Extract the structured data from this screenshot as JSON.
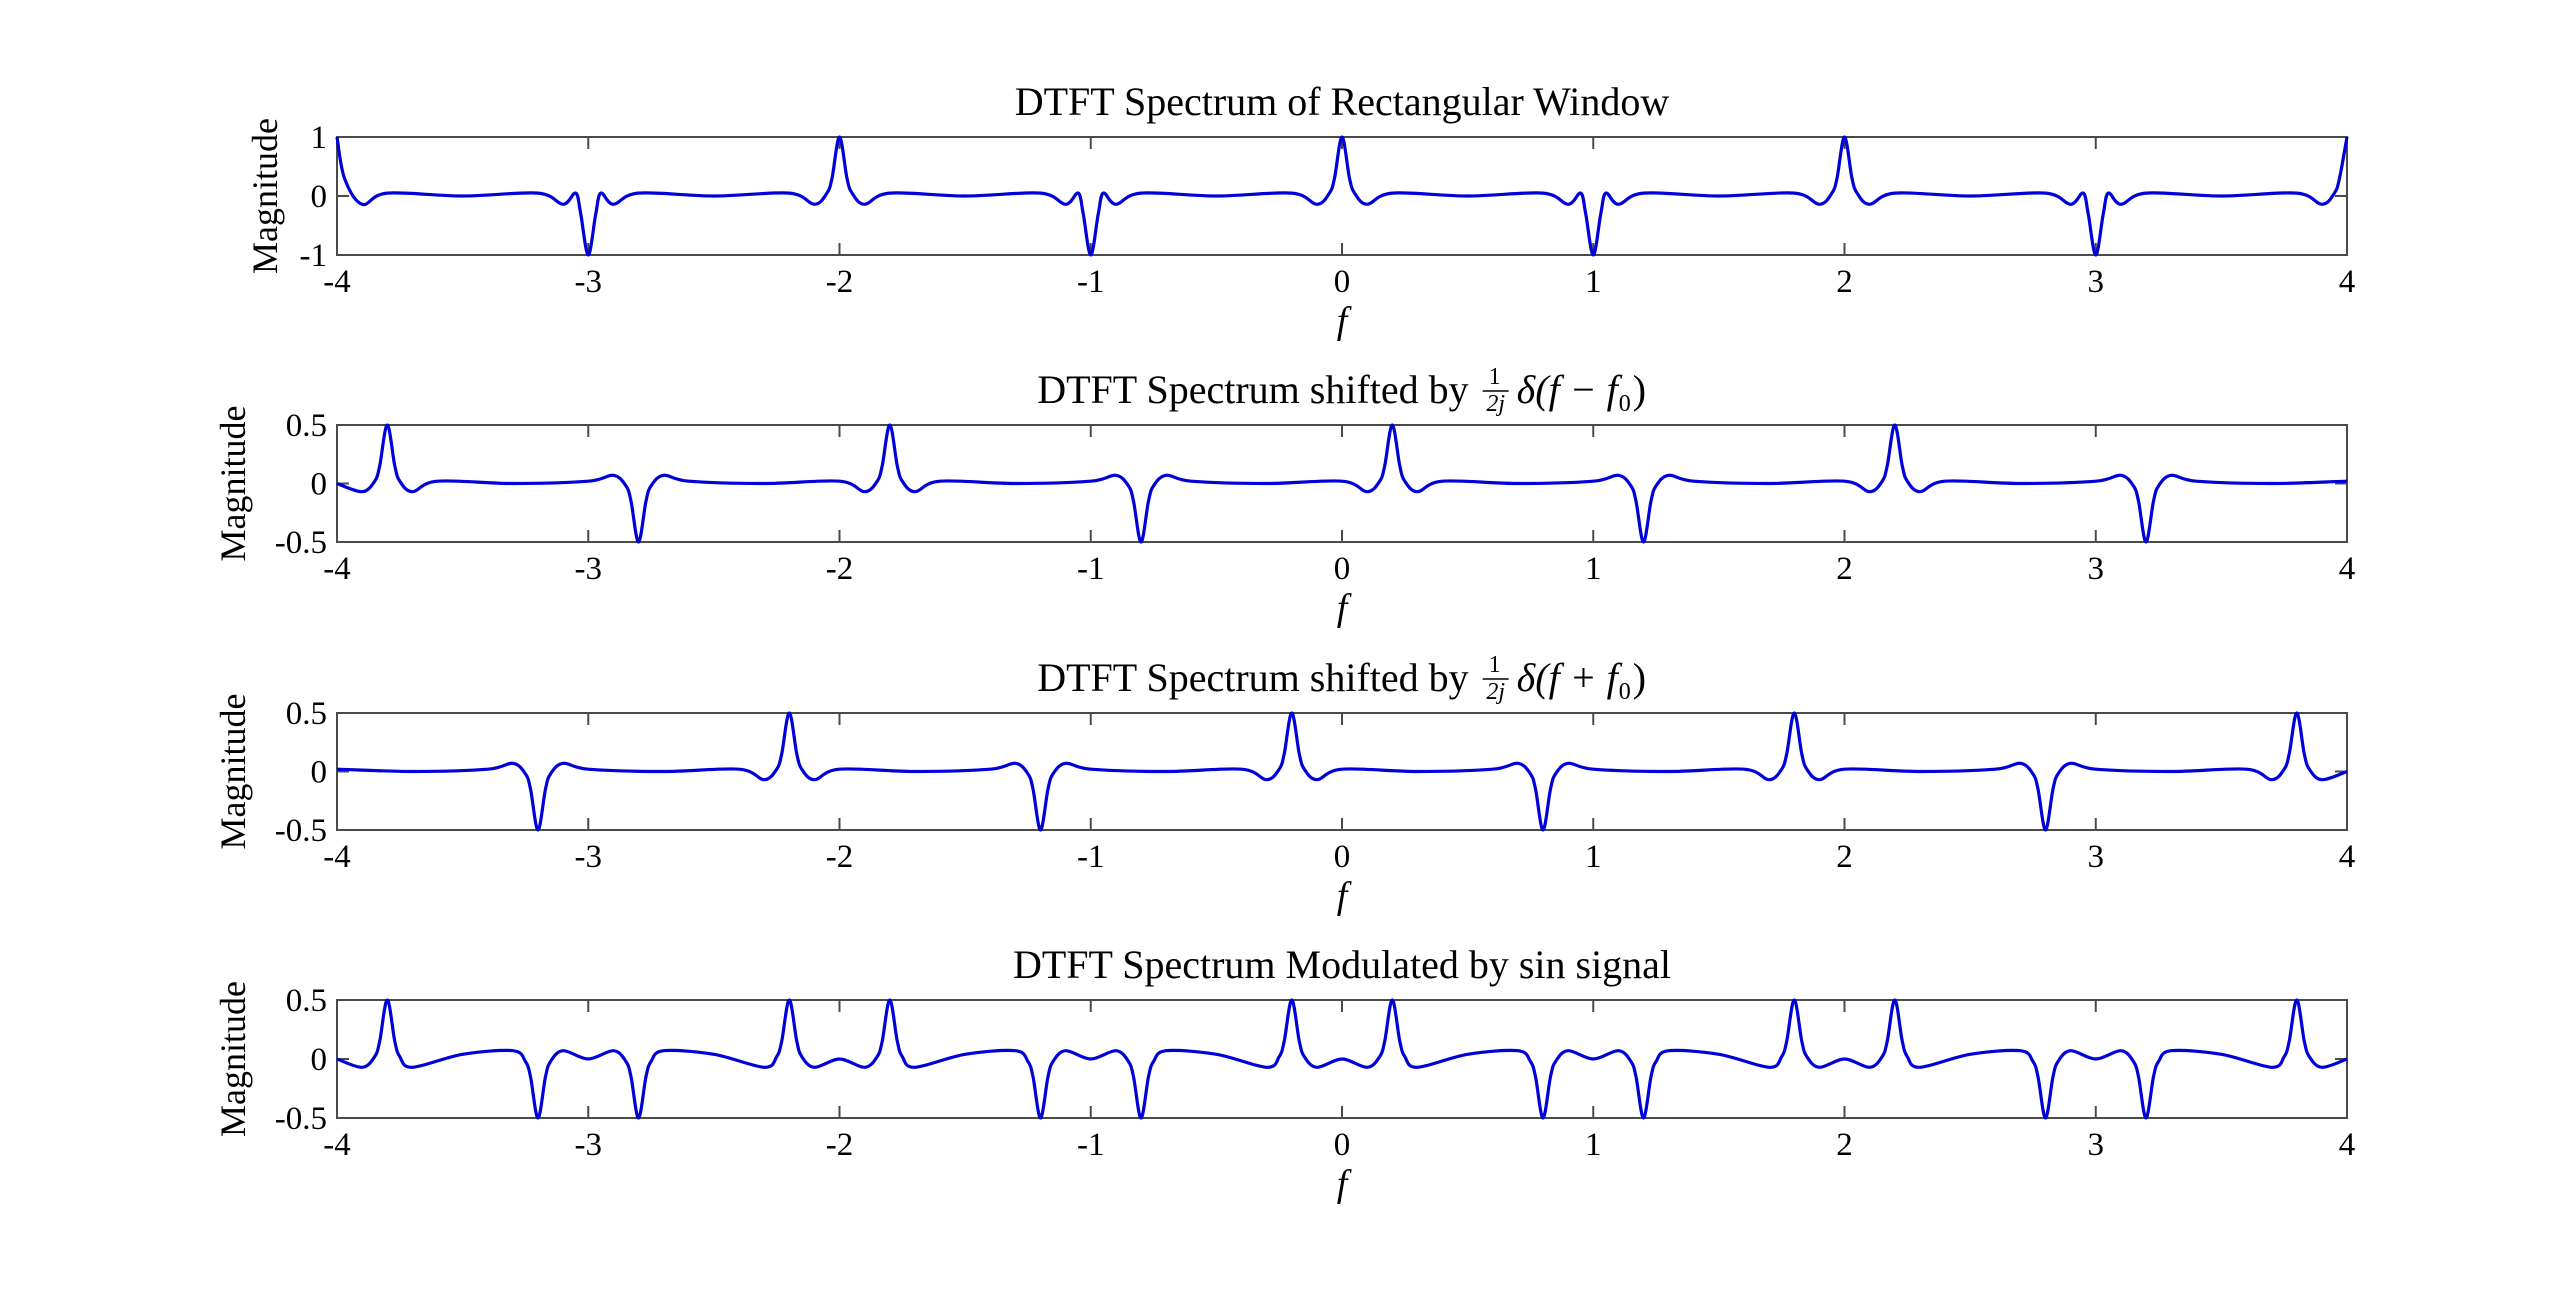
{
  "chart_data": [
    {
      "type": "line",
      "title": "DTFT Spectrum of Rectangular Window",
      "xlabel": "f",
      "ylabel": "Magnitude",
      "xlim": [
        -4,
        4
      ],
      "ylim": [
        -1,
        1
      ],
      "xticks": [
        -4,
        -3,
        -2,
        -1,
        0,
        1,
        2,
        3,
        4
      ],
      "xtick_labels": [
        "-4",
        "-3",
        "-2",
        "-1",
        "0",
        "1",
        "2",
        "3",
        "4"
      ],
      "yticks": [
        -1,
        0,
        1
      ],
      "ytick_labels": [
        "-1",
        "0",
        "1"
      ],
      "grid": false,
      "line_color": "#0000d8",
      "series": [
        {
          "x": [
            -4.0,
            -3.97,
            -3.9,
            -3.8,
            -3.5,
            -3.2,
            -3.1,
            -3.05,
            -3.03,
            -3.0,
            -2.97,
            -2.95,
            -2.9,
            -2.8,
            -2.5,
            -2.2,
            -2.1,
            -2.05,
            -2.03,
            -2.0,
            -1.97,
            -1.95,
            -1.9,
            -1.8,
            -1.5,
            -1.2,
            -1.1,
            -1.05,
            -1.03,
            -1.0,
            -0.97,
            -0.95,
            -0.9,
            -0.8,
            -0.5,
            -0.2,
            -0.1,
            -0.05,
            -0.03,
            0.0,
            0.03,
            0.05,
            0.1,
            0.2,
            0.5,
            0.8,
            0.9,
            0.95,
            0.97,
            1.0,
            1.03,
            1.05,
            1.1,
            1.2,
            1.5,
            1.8,
            1.9,
            1.95,
            1.97,
            2.0,
            2.03,
            2.05,
            2.1,
            2.2,
            2.5,
            2.8,
            2.9,
            2.95,
            2.97,
            3.0,
            3.03,
            3.05,
            3.1,
            3.2,
            3.5,
            3.8,
            3.9,
            3.95,
            3.97,
            4.0
          ],
          "y": [
            1.0,
            0.3,
            -0.14,
            0.05,
            0.0,
            0.05,
            -0.14,
            0.05,
            -0.3,
            -1.0,
            -0.3,
            0.05,
            -0.14,
            0.05,
            0.0,
            0.05,
            -0.14,
            0.05,
            0.3,
            1.0,
            0.3,
            0.05,
            -0.14,
            0.05,
            0.0,
            0.05,
            -0.14,
            0.05,
            -0.3,
            -1.0,
            -0.3,
            0.05,
            -0.14,
            0.05,
            0.0,
            0.05,
            -0.14,
            0.05,
            0.3,
            1.0,
            0.3,
            0.05,
            -0.14,
            0.05,
            0.0,
            0.05,
            -0.14,
            0.05,
            -0.3,
            -1.0,
            -0.3,
            0.05,
            -0.14,
            0.05,
            0.0,
            0.05,
            -0.14,
            0.05,
            0.3,
            1.0,
            0.3,
            0.05,
            -0.14,
            0.05,
            0.0,
            0.05,
            -0.14,
            0.05,
            -0.3,
            -1.0,
            -0.3,
            0.05,
            -0.14,
            0.05,
            0.0,
            0.05,
            -0.14,
            0.05,
            0.3,
            1.0
          ]
        }
      ]
    },
    {
      "type": "line",
      "title": "DTFT Spectrum shifted by",
      "title_formula": {
        "num": "1",
        "den": "2j",
        "rest": "δ(f − f",
        "sub": "0",
        "close": ")"
      },
      "xlabel": "f",
      "ylabel": "Magnitude",
      "xlim": [
        -4,
        4
      ],
      "ylim": [
        -0.5,
        0.5
      ],
      "xticks": [
        -4,
        -3,
        -2,
        -1,
        0,
        1,
        2,
        3,
        4
      ],
      "xtick_labels": [
        "-4",
        "-3",
        "-2",
        "-1",
        "0",
        "1",
        "2",
        "3",
        "4"
      ],
      "yticks": [
        -0.5,
        0,
        0.5
      ],
      "ytick_labels": [
        "-0.5",
        "0",
        "0.5"
      ],
      "grid": false,
      "line_color": "#0000d8",
      "series": [
        {
          "x": [
            -4.0,
            -3.9,
            -3.85,
            -3.83,
            -3.8,
            -3.77,
            -3.75,
            -3.7,
            -3.6,
            -3.3,
            -3.0,
            -2.9,
            -2.85,
            -2.83,
            -2.8,
            -2.77,
            -2.75,
            -2.7,
            -2.6,
            -2.3,
            -2.0,
            -1.9,
            -1.85,
            -1.83,
            -1.8,
            -1.77,
            -1.75,
            -1.7,
            -1.6,
            -1.3,
            -1.0,
            -0.9,
            -0.85,
            -0.83,
            -0.8,
            -0.77,
            -0.75,
            -0.7,
            -0.6,
            -0.3,
            0.0,
            0.1,
            0.15,
            0.17,
            0.2,
            0.23,
            0.25,
            0.3,
            0.4,
            0.7,
            1.0,
            1.1,
            1.15,
            1.17,
            1.2,
            1.23,
            1.25,
            1.3,
            1.4,
            1.7,
            2.0,
            2.1,
            2.15,
            2.17,
            2.2,
            2.23,
            2.25,
            2.3,
            2.4,
            2.7,
            3.0,
            3.1,
            3.15,
            3.17,
            3.2,
            3.23,
            3.25,
            3.3,
            3.4,
            3.7,
            4.0
          ],
          "y": [
            0.0,
            -0.07,
            0.02,
            0.15,
            0.5,
            0.15,
            0.02,
            -0.07,
            0.02,
            0.0,
            0.02,
            0.07,
            -0.02,
            -0.15,
            -0.5,
            -0.15,
            -0.02,
            0.07,
            0.02,
            0.0,
            0.02,
            -0.07,
            0.02,
            0.15,
            0.5,
            0.15,
            0.02,
            -0.07,
            0.02,
            0.0,
            0.02,
            0.07,
            -0.02,
            -0.15,
            -0.5,
            -0.15,
            -0.02,
            0.07,
            0.02,
            0.0,
            0.02,
            -0.07,
            0.02,
            0.15,
            0.5,
            0.15,
            0.02,
            -0.07,
            0.02,
            0.0,
            0.02,
            0.07,
            -0.02,
            -0.15,
            -0.5,
            -0.15,
            -0.02,
            0.07,
            0.02,
            0.0,
            0.02,
            -0.07,
            0.02,
            0.15,
            0.5,
            0.15,
            0.02,
            -0.07,
            0.02,
            0.0,
            0.02,
            0.07,
            -0.02,
            -0.15,
            -0.5,
            -0.15,
            -0.02,
            0.07,
            0.02,
            0.0,
            0.02
          ]
        }
      ]
    },
    {
      "type": "line",
      "title": "DTFT Spectrum shifted by",
      "title_formula": {
        "num": "1",
        "den": "2j",
        "rest": "δ(f + f",
        "sub": "0",
        "close": ")"
      },
      "xlabel": "f",
      "ylabel": "Magnitude",
      "xlim": [
        -4,
        4
      ],
      "ylim": [
        -0.5,
        0.5
      ],
      "xticks": [
        -4,
        -3,
        -2,
        -1,
        0,
        1,
        2,
        3,
        4
      ],
      "xtick_labels": [
        "-4",
        "-3",
        "-2",
        "-1",
        "0",
        "1",
        "2",
        "3",
        "4"
      ],
      "yticks": [
        -0.5,
        0,
        0.5
      ],
      "ytick_labels": [
        "-0.5",
        "0",
        "0.5"
      ],
      "grid": false,
      "line_color": "#0000d8",
      "series": [
        {
          "x": [
            -4.0,
            -3.7,
            -3.4,
            -3.3,
            -3.25,
            -3.23,
            -3.2,
            -3.17,
            -3.15,
            -3.1,
            -3.0,
            -2.7,
            -2.4,
            -2.3,
            -2.25,
            -2.23,
            -2.2,
            -2.17,
            -2.15,
            -2.1,
            -2.0,
            -1.7,
            -1.4,
            -1.3,
            -1.25,
            -1.23,
            -1.2,
            -1.17,
            -1.15,
            -1.1,
            -1.0,
            -0.7,
            -0.4,
            -0.3,
            -0.25,
            -0.23,
            -0.2,
            -0.17,
            -0.15,
            -0.1,
            0.0,
            0.3,
            0.6,
            0.7,
            0.75,
            0.77,
            0.8,
            0.83,
            0.85,
            0.9,
            1.0,
            1.3,
            1.6,
            1.7,
            1.75,
            1.77,
            1.8,
            1.83,
            1.85,
            1.9,
            2.0,
            2.3,
            2.6,
            2.7,
            2.75,
            2.77,
            2.8,
            2.83,
            2.85,
            2.9,
            3.0,
            3.3,
            3.6,
            3.7,
            3.75,
            3.77,
            3.8,
            3.83,
            3.85,
            3.9,
            4.0
          ],
          "y": [
            0.02,
            0.0,
            0.02,
            0.07,
            -0.02,
            -0.15,
            -0.5,
            -0.15,
            -0.02,
            0.07,
            0.02,
            0.0,
            0.02,
            -0.07,
            0.02,
            0.15,
            0.5,
            0.15,
            0.02,
            -0.07,
            0.02,
            0.0,
            0.02,
            0.07,
            -0.02,
            -0.15,
            -0.5,
            -0.15,
            -0.02,
            0.07,
            0.02,
            0.0,
            0.02,
            -0.07,
            0.02,
            0.15,
            0.5,
            0.15,
            0.02,
            -0.07,
            0.02,
            0.0,
            0.02,
            0.07,
            -0.02,
            -0.15,
            -0.5,
            -0.15,
            -0.02,
            0.07,
            0.02,
            0.0,
            0.02,
            -0.07,
            0.02,
            0.15,
            0.5,
            0.15,
            0.02,
            -0.07,
            0.02,
            0.0,
            0.02,
            0.07,
            -0.02,
            -0.15,
            -0.5,
            -0.15,
            -0.02,
            0.07,
            0.02,
            0.0,
            0.02,
            -0.07,
            0.02,
            0.15,
            0.5,
            0.15,
            0.02,
            -0.07,
            0.0
          ]
        }
      ]
    },
    {
      "type": "line",
      "title": "DTFT Spectrum Modulated by sin signal",
      "xlabel": "f",
      "ylabel": "Magnitude",
      "xlim": [
        -4,
        4
      ],
      "ylim": [
        -0.5,
        0.5
      ],
      "xticks": [
        -4,
        -3,
        -2,
        -1,
        0,
        1,
        2,
        3,
        4
      ],
      "xtick_labels": [
        "-4",
        "-3",
        "-2",
        "-1",
        "0",
        "1",
        "2",
        "3",
        "4"
      ],
      "yticks": [
        -0.5,
        0,
        0.5
      ],
      "ytick_labels": [
        "-0.5",
        "0",
        "0.5"
      ],
      "grid": false,
      "line_color": "#0000d8",
      "series": [
        {
          "x": [
            -4.0,
            -3.9,
            -3.85,
            -3.83,
            -3.8,
            -3.77,
            -3.75,
            -3.7,
            -3.5,
            -3.3,
            -3.25,
            -3.23,
            -3.2,
            -3.17,
            -3.15,
            -3.1,
            -3.0,
            -2.9,
            -2.85,
            -2.83,
            -2.8,
            -2.77,
            -2.75,
            -2.7,
            -2.5,
            -2.3,
            -2.25,
            -2.23,
            -2.2,
            -2.17,
            -2.15,
            -2.1,
            -2.0,
            -1.9,
            -1.85,
            -1.83,
            -1.8,
            -1.77,
            -1.75,
            -1.7,
            -1.5,
            -1.3,
            -1.25,
            -1.23,
            -1.2,
            -1.17,
            -1.15,
            -1.1,
            -1.0,
            -0.9,
            -0.85,
            -0.83,
            -0.8,
            -0.77,
            -0.75,
            -0.7,
            -0.5,
            -0.3,
            -0.25,
            -0.23,
            -0.2,
            -0.17,
            -0.15,
            -0.1,
            0.0,
            0.1,
            0.15,
            0.17,
            0.2,
            0.23,
            0.25,
            0.3,
            0.5,
            0.7,
            0.75,
            0.77,
            0.8,
            0.83,
            0.85,
            0.9,
            1.0,
            1.1,
            1.15,
            1.17,
            1.2,
            1.23,
            1.25,
            1.3,
            1.5,
            1.7,
            1.75,
            1.77,
            1.8,
            1.83,
            1.85,
            1.9,
            2.0,
            2.1,
            2.15,
            2.17,
            2.2,
            2.23,
            2.25,
            2.3,
            2.5,
            2.7,
            2.75,
            2.77,
            2.8,
            2.83,
            2.85,
            2.9,
            3.0,
            3.1,
            3.15,
            3.17,
            3.2,
            3.23,
            3.25,
            3.3,
            3.5,
            3.7,
            3.75,
            3.77,
            3.8,
            3.83,
            3.85,
            3.9,
            4.0
          ],
          "y": [
            0.0,
            -0.07,
            0.02,
            0.15,
            0.5,
            0.15,
            0.02,
            -0.07,
            0.04,
            0.07,
            -0.02,
            -0.15,
            -0.5,
            -0.15,
            -0.02,
            0.07,
            0.0,
            0.07,
            -0.02,
            -0.15,
            -0.5,
            -0.15,
            -0.02,
            0.07,
            0.04,
            -0.07,
            0.02,
            0.15,
            0.5,
            0.15,
            0.02,
            -0.07,
            0.0,
            -0.07,
            0.02,
            0.15,
            0.5,
            0.15,
            0.02,
            -0.07,
            0.04,
            0.07,
            -0.02,
            -0.15,
            -0.5,
            -0.15,
            -0.02,
            0.07,
            0.0,
            0.07,
            -0.02,
            -0.15,
            -0.5,
            -0.15,
            -0.02,
            0.07,
            0.04,
            -0.07,
            0.02,
            0.15,
            0.5,
            0.15,
            0.02,
            -0.07,
            0.0,
            -0.07,
            0.02,
            0.15,
            0.5,
            0.15,
            0.02,
            -0.07,
            0.04,
            0.07,
            -0.02,
            -0.15,
            -0.5,
            -0.15,
            -0.02,
            0.07,
            0.0,
            0.07,
            -0.02,
            -0.15,
            -0.5,
            -0.15,
            -0.02,
            0.07,
            0.04,
            -0.07,
            0.02,
            0.15,
            0.5,
            0.15,
            0.02,
            -0.07,
            0.0,
            -0.07,
            0.02,
            0.15,
            0.5,
            0.15,
            0.02,
            -0.07,
            0.04,
            0.07,
            -0.02,
            -0.15,
            -0.5,
            -0.15,
            -0.02,
            0.07,
            0.0,
            0.07,
            -0.02,
            -0.15,
            -0.5,
            -0.15,
            -0.02,
            0.07,
            0.04,
            -0.07,
            0.02,
            0.15,
            0.5,
            0.15,
            0.02,
            -0.07,
            0.0
          ]
        }
      ]
    }
  ]
}
